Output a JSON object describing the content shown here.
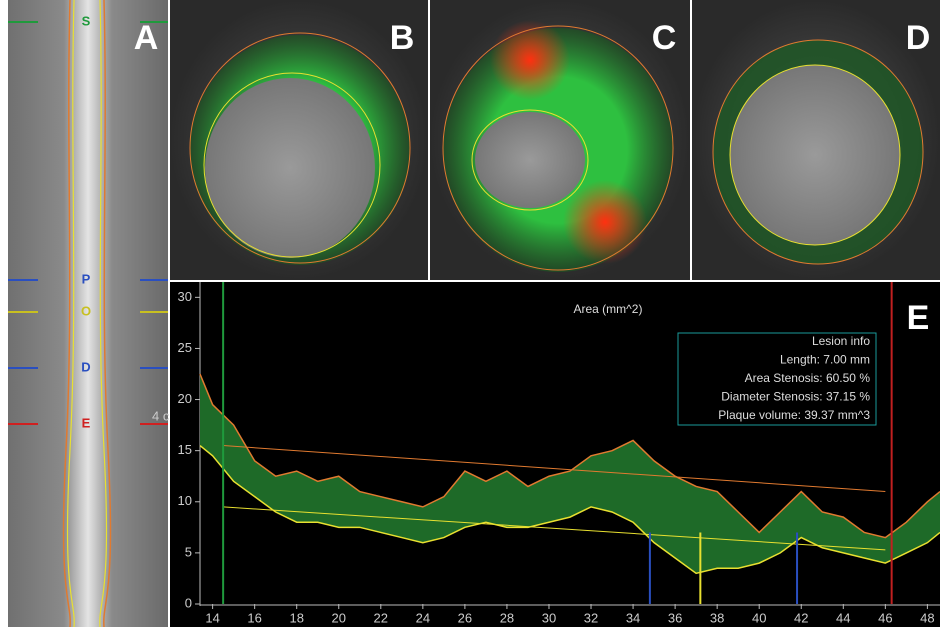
{
  "panel_labels": [
    "A",
    "B",
    "C",
    "D"
  ],
  "vessel_markers": [
    {
      "label": "S",
      "color": "#1f9a3c"
    },
    {
      "label": "P",
      "color": "#2a4fc0"
    },
    {
      "label": "O",
      "color": "#c8c020"
    },
    {
      "label": "D",
      "color": "#2a4fc0"
    },
    {
      "label": "E",
      "color": "#d02020"
    }
  ],
  "cut_text": "4 c",
  "chart_data": {
    "type": "area",
    "panel_label": "E",
    "title": "Area (mm^2)",
    "info_box": [
      "Lesion info",
      "Length: 7.00 mm",
      "Area Stenosis: 60.50 %",
      "Diameter Stenosis: 37.15 %",
      "Plaque volume: 39.37 mm^3"
    ],
    "x": [
      13.4,
      14,
      15,
      16,
      17,
      18,
      19,
      20,
      21,
      22,
      23,
      24,
      25,
      26,
      27,
      28,
      29,
      30,
      31,
      32,
      33,
      34,
      35,
      36,
      37,
      38,
      39,
      40,
      41,
      42,
      43,
      44,
      45,
      46,
      47,
      48,
      48.6
    ],
    "series": [
      {
        "color": "#e07a30",
        "values": [
          22.5,
          19.5,
          17.5,
          14,
          12.5,
          13,
          12,
          12.5,
          11,
          10.5,
          10,
          9.5,
          10.5,
          13,
          12,
          13,
          11.5,
          12.5,
          13,
          14.5,
          15,
          16,
          14,
          12.5,
          11.5,
          11,
          9,
          7,
          9,
          11,
          9,
          8.5,
          7,
          6.5,
          8,
          10,
          11
        ]
      },
      {
        "color": "#e8e030",
        "values": [
          15.5,
          14.5,
          12,
          10.5,
          9,
          8,
          8,
          7.5,
          7.5,
          7,
          6.5,
          6,
          6.5,
          7.5,
          8,
          7.5,
          7.5,
          8,
          8.5,
          9.5,
          9,
          8,
          6,
          4.5,
          3,
          3.5,
          3.5,
          4,
          5,
          6.5,
          5.5,
          5,
          4.5,
          4,
          5,
          6,
          7
        ]
      }
    ],
    "fill_color": "#1e6a28",
    "reference_lines": [
      {
        "color": "#e07a30",
        "x": [
          14.5,
          46
        ],
        "values": [
          15.5,
          11
        ]
      },
      {
        "color": "#e8e030",
        "x": [
          14.5,
          46
        ],
        "values": [
          9.5,
          5.3
        ]
      }
    ],
    "vlines": [
      {
        "x": 14.5,
        "color": "#1f9a3c"
      },
      {
        "x": 46.3,
        "color": "#c02020"
      },
      {
        "x": 34.8,
        "color": "#2a4fc0"
      },
      {
        "x": 41.8,
        "color": "#2a4fc0"
      },
      {
        "x": 37.2,
        "color": "#e8e030"
      }
    ],
    "xlim": [
      13.4,
      48.6
    ],
    "ylim": [
      0,
      31.5
    ],
    "xticks": [
      14,
      16,
      18,
      20,
      22,
      24,
      26,
      28,
      30,
      32,
      34,
      36,
      38,
      40,
      42,
      44,
      46,
      48
    ],
    "yticks": [
      0,
      5,
      10,
      15,
      20,
      25,
      30
    ]
  }
}
